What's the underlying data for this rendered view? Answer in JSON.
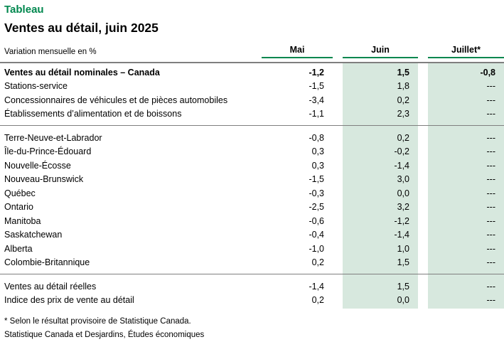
{
  "page": {
    "eyebrow": "Tableau",
    "title": "Ventes au détail, juin 2025"
  },
  "chart_data": {
    "type": "table",
    "title": "Ventes au détail, juin 2025",
    "unit_label": "Variation mensuelle en %",
    "columns": [
      "Mai",
      "Juin",
      "Juillet*"
    ],
    "highlighted_columns": [
      "Juin",
      "Juillet*"
    ],
    "sections": [
      {
        "rows": [
          {
            "label": "Ventes au détail nominales – Canada",
            "values": [
              "-1,2",
              "1,5",
              "-0,8"
            ],
            "bold": true
          },
          {
            "label": "Stations-service",
            "values": [
              "-1,5",
              "1,8",
              "---"
            ]
          },
          {
            "label": "Concessionnaires de véhicules et de pièces automobiles",
            "values": [
              "-3,4",
              "0,2",
              "---"
            ]
          },
          {
            "label": "Établissements d’alimentation et de boissons",
            "values": [
              "-1,1",
              "2,3",
              "---"
            ]
          }
        ]
      },
      {
        "rows": [
          {
            "label": "Terre-Neuve-et-Labrador",
            "values": [
              "-0,8",
              "0,2",
              "---"
            ]
          },
          {
            "label": "Île-du-Prince-Édouard",
            "values": [
              "0,3",
              "-0,2",
              "---"
            ]
          },
          {
            "label": "Nouvelle-Écosse",
            "values": [
              "0,3",
              "-1,4",
              "---"
            ]
          },
          {
            "label": "Nouveau-Brunswick",
            "values": [
              "-1,5",
              "3,0",
              "---"
            ]
          },
          {
            "label": "Québec",
            "values": [
              "-0,3",
              "0,0",
              "---"
            ]
          },
          {
            "label": "Ontario",
            "values": [
              "-2,5",
              "3,2",
              "---"
            ]
          },
          {
            "label": "Manitoba",
            "values": [
              "-0,6",
              "-1,2",
              "---"
            ]
          },
          {
            "label": "Saskatchewan",
            "values": [
              "-0,4",
              "-1,4",
              "---"
            ]
          },
          {
            "label": "Alberta",
            "values": [
              "-1,0",
              "1,0",
              "---"
            ]
          },
          {
            "label": "Colombie-Britannique",
            "values": [
              "0,2",
              "1,5",
              "---"
            ]
          }
        ]
      },
      {
        "rows": [
          {
            "label": "Ventes au détail réelles",
            "values": [
              "-1,4",
              "1,5",
              "---"
            ]
          },
          {
            "label": "Indice des prix de vente au détail",
            "values": [
              "0,2",
              "0,0",
              "---"
            ]
          }
        ]
      }
    ]
  },
  "footnotes": {
    "note1": "* Selon le résultat provisoire de Statistique Canada.",
    "note2": "Statistique Canada et Desjardins, Études économiques"
  },
  "colors": {
    "accent_green": "#00874E",
    "band_green": "#D7E8DE",
    "line_gray": "#7F7F7F"
  }
}
